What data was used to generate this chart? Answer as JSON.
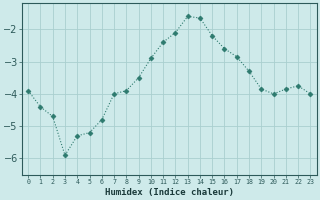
{
  "x": [
    0,
    1,
    2,
    3,
    4,
    5,
    6,
    7,
    8,
    9,
    10,
    11,
    12,
    13,
    14,
    15,
    16,
    17,
    18,
    19,
    20,
    21,
    22,
    23
  ],
  "y": [
    -3.9,
    -4.4,
    -4.7,
    -5.9,
    -5.3,
    -5.2,
    -4.8,
    -4.0,
    -3.9,
    -3.5,
    -2.9,
    -2.4,
    -2.1,
    -1.6,
    -1.65,
    -2.2,
    -2.6,
    -2.85,
    -3.3,
    -3.85,
    -4.0,
    -3.85,
    -3.75,
    -4.0
  ],
  "xlabel": "Humidex (Indice chaleur)",
  "ylabel": "",
  "xlim": [
    -0.5,
    23.5
  ],
  "ylim": [
    -6.5,
    -1.2
  ],
  "yticks": [
    -6,
    -5,
    -4,
    -3,
    -2
  ],
  "xtick_labels": [
    "0",
    "1",
    "2",
    "3",
    "4",
    "5",
    "6",
    "7",
    "8",
    "9",
    "10",
    "11",
    "12",
    "13",
    "14",
    "15",
    "16",
    "17",
    "18",
    "19",
    "20",
    "21",
    "22",
    "23"
  ],
  "line_color": "#2d7a6e",
  "marker": "D",
  "marker_size": 2.5,
  "bg_color": "#ceeaea",
  "grid_color": "#aacfcf",
  "tick_color": "#2d5a5a",
  "label_color": "#1a3a3a",
  "line_width": 1.0
}
